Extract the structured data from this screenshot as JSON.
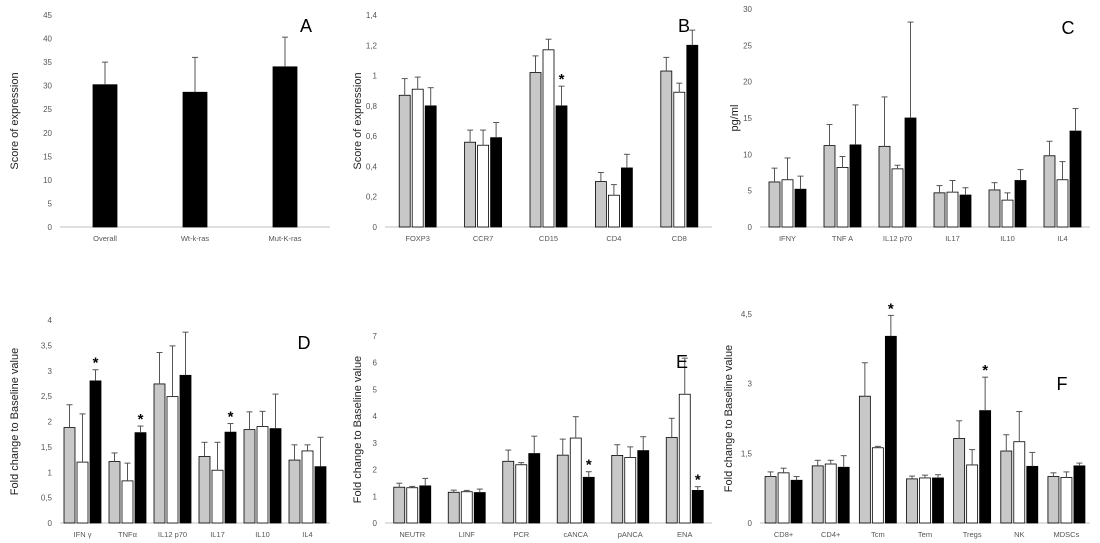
{
  "chart_data": [
    {
      "type": "bar",
      "panel": "A",
      "ylabel": "Score of expression",
      "ylim": [
        0,
        45
      ],
      "yticks": [
        0,
        5,
        10,
        15,
        20,
        25,
        30,
        35,
        40,
        45
      ],
      "categories": [
        "Overall",
        "Wt-k-ras",
        "Mut-K-ras"
      ],
      "series": [
        {
          "name": "group-1",
          "color": "#000000",
          "values": [
            30.2,
            28.6,
            34.0
          ],
          "errors": [
            4.8,
            7.4,
            6.3
          ]
        }
      ],
      "stars": []
    },
    {
      "type": "bar",
      "panel": "B",
      "ylabel": "Score of expression",
      "ylim": [
        0,
        1.4
      ],
      "yticks": [
        "0",
        "0,2",
        "0,4",
        "0,6",
        "0,8",
        "1",
        "1,2",
        "1,4"
      ],
      "categories": [
        "FOXP3",
        "CCR7",
        "CD15",
        "CD4",
        "CD8"
      ],
      "series": [
        {
          "name": "group-1",
          "color": "#c8c8c8",
          "values": [
            0.87,
            0.56,
            1.02,
            0.3,
            1.03
          ],
          "errors": [
            0.11,
            0.08,
            0.11,
            0.06,
            0.09
          ]
        },
        {
          "name": "group-2",
          "color": "#ffffff",
          "values": [
            0.91,
            0.54,
            1.17,
            0.21,
            0.89
          ],
          "errors": [
            0.08,
            0.1,
            0.07,
            0.07,
            0.06
          ]
        },
        {
          "name": "group-3",
          "color": "#000000",
          "values": [
            0.8,
            0.59,
            0.8,
            0.39,
            1.2
          ],
          "errors": [
            0.12,
            0.1,
            0.13,
            0.09,
            0.1
          ]
        }
      ],
      "stars": [
        {
          "category": 2,
          "series": 2,
          "label": "*"
        }
      ]
    },
    {
      "type": "bar",
      "panel": "C",
      "ylabel": "pg/ml",
      "ylim": [
        0,
        30
      ],
      "yticks": [
        0,
        5,
        10,
        15,
        20,
        25,
        30
      ],
      "categories": [
        "IFNY",
        "TNF A",
        "IL12 p70",
        "IL17",
        "IL10",
        "IL4"
      ],
      "series": [
        {
          "name": "group-1",
          "color": "#c8c8c8",
          "values": [
            6.2,
            11.2,
            11.1,
            4.7,
            5.1,
            9.8
          ],
          "errors": [
            1.9,
            2.9,
            6.8,
            1.0,
            1.0,
            2.0
          ]
        },
        {
          "name": "group-2",
          "color": "#ffffff",
          "values": [
            6.5,
            8.2,
            8.0,
            4.8,
            3.7,
            6.5
          ],
          "errors": [
            3.0,
            1.5,
            0.5,
            1.6,
            1.0,
            2.5
          ]
        },
        {
          "name": "group-3",
          "color": "#000000",
          "values": [
            5.2,
            11.3,
            15.0,
            4.4,
            6.4,
            13.2
          ],
          "errors": [
            1.8,
            5.5,
            13.2,
            1.0,
            1.5,
            3.1
          ]
        }
      ],
      "stars": []
    },
    {
      "type": "bar",
      "panel": "D",
      "ylabel": "Fold change to Baseline value",
      "ylim": [
        0,
        4
      ],
      "yticks": [
        "0",
        "0,5",
        "1",
        "1,5",
        "2",
        "2,5",
        "3",
        "3,5",
        "4"
      ],
      "categories": [
        "IFN γ",
        "TNFα",
        "IL12 p70",
        "IL17",
        "IL10",
        "IL4"
      ],
      "series": [
        {
          "name": "group-1",
          "color": "#c8c8c8",
          "values": [
            1.88,
            1.21,
            2.74,
            1.31,
            1.84,
            1.24
          ],
          "errors": [
            0.45,
            0.17,
            0.62,
            0.28,
            0.35,
            0.3
          ]
        },
        {
          "name": "group-2",
          "color": "#ffffff",
          "values": [
            1.2,
            0.83,
            2.49,
            1.04,
            1.9,
            1.42
          ],
          "errors": [
            0.95,
            0.35,
            1.0,
            0.55,
            0.3,
            0.12
          ]
        },
        {
          "name": "group-3",
          "color": "#000000",
          "values": [
            2.8,
            1.78,
            2.91,
            1.79,
            1.86,
            1.11
          ],
          "errors": [
            0.22,
            0.13,
            0.85,
            0.17,
            0.68,
            0.58
          ]
        }
      ],
      "stars": [
        {
          "category": 0,
          "series": 2,
          "label": "*"
        },
        {
          "category": 1,
          "series": 2,
          "label": "*"
        },
        {
          "category": 3,
          "series": 2,
          "label": "*"
        }
      ]
    },
    {
      "type": "bar",
      "panel": "E",
      "ylabel": "Fold change to Baseline value",
      "ylim": [
        0,
        7
      ],
      "yticks": [
        0,
        1,
        2,
        3,
        4,
        5,
        6,
        7
      ],
      "categories": [
        "NEUTR",
        "LINF",
        "PCR",
        "cANCA",
        "pANCA",
        "ENA"
      ],
      "series": [
        {
          "name": "group-1",
          "color": "#c8c8c8",
          "values": [
            1.34,
            1.15,
            2.31,
            2.54,
            2.53,
            3.2
          ],
          "errors": [
            0.15,
            0.08,
            0.42,
            0.6,
            0.4,
            0.72
          ]
        },
        {
          "name": "group-2",
          "color": "#ffffff",
          "values": [
            1.32,
            1.17,
            2.18,
            3.18,
            2.45,
            4.82
          ],
          "errors": [
            0.05,
            0.05,
            0.08,
            0.8,
            0.4,
            1.35
          ]
        },
        {
          "name": "group-3",
          "color": "#000000",
          "values": [
            1.39,
            1.14,
            2.6,
            1.71,
            2.71,
            1.22
          ],
          "errors": [
            0.28,
            0.13,
            0.65,
            0.21,
            0.52,
            0.14
          ]
        }
      ],
      "stars": [
        {
          "category": 3,
          "series": 2,
          "label": "*"
        },
        {
          "category": 5,
          "series": 2,
          "label": "*"
        }
      ]
    },
    {
      "type": "bar",
      "panel": "F",
      "ylabel": "Fold change to Baseline value",
      "ylim": [
        0,
        4.5
      ],
      "yticks": [
        "0",
        "1,5",
        "3",
        "4,5"
      ],
      "categories": [
        "CD8+",
        "CD4+",
        "Tcm",
        "Tem",
        "Tregs",
        "NK",
        "MDSCs"
      ],
      "series": [
        {
          "name": "group-1",
          "color": "#c8c8c8",
          "values": [
            1.0,
            1.23,
            2.73,
            0.95,
            1.82,
            1.55,
            1.0
          ],
          "errors": [
            0.1,
            0.12,
            0.72,
            0.06,
            0.38,
            0.35,
            0.08
          ]
        },
        {
          "name": "group-2",
          "color": "#ffffff",
          "values": [
            1.08,
            1.27,
            1.62,
            0.97,
            1.25,
            1.75,
            0.98
          ],
          "errors": [
            0.1,
            0.08,
            0.03,
            0.06,
            0.33,
            0.65,
            0.12
          ]
        },
        {
          "name": "group-3",
          "color": "#000000",
          "values": [
            0.92,
            1.2,
            4.02,
            0.97,
            2.42,
            1.22,
            1.23
          ],
          "errors": [
            0.08,
            0.25,
            0.45,
            0.07,
            0.72,
            0.3,
            0.06
          ]
        }
      ],
      "stars": [
        {
          "category": 2,
          "series": 2,
          "label": "*"
        },
        {
          "category": 4,
          "series": 2,
          "label": "*"
        }
      ]
    }
  ]
}
